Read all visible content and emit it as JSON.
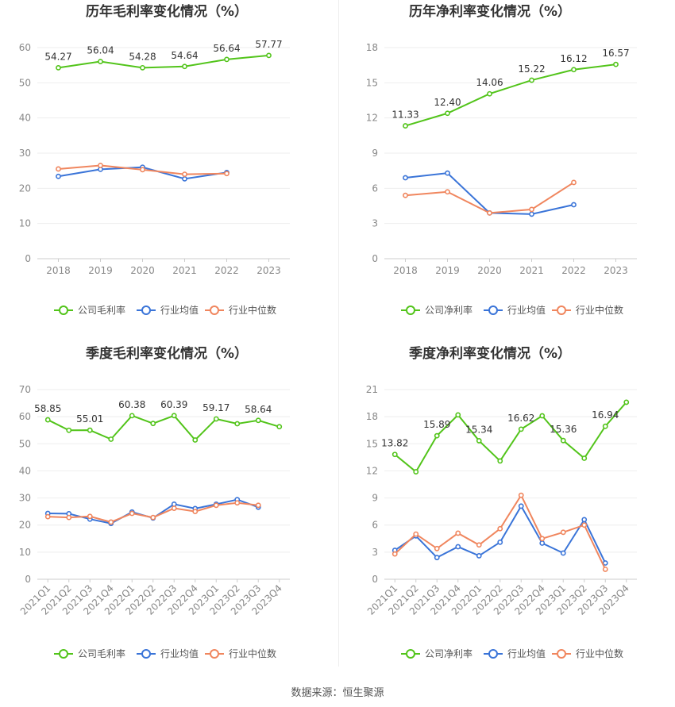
{
  "colors": {
    "company": "#52c41a",
    "average": "#3a74d8",
    "median": "#f0865e"
  },
  "source": "数据来源：恒生聚源",
  "chart_data": [
    {
      "type": "line",
      "title": "历年毛利率变化情况（%）",
      "categories": [
        "2018",
        "2019",
        "2020",
        "2021",
        "2022",
        "2023"
      ],
      "yticks": [
        "0",
        "10",
        "20",
        "30",
        "40",
        "50",
        "60"
      ],
      "ylim": [
        0,
        60
      ],
      "grid": true,
      "legend_position": "bottom",
      "series": [
        {
          "name": "公司毛利率",
          "values": [
            54.27,
            56.04,
            54.28,
            54.64,
            56.64,
            57.77
          ],
          "labels": [
            "54.27",
            "56.04",
            "54.28",
            "54.64",
            "56.64",
            "57.77"
          ]
        },
        {
          "name": "行业均值",
          "values": [
            23.4,
            25.4,
            26.0,
            22.7,
            24.5,
            null
          ]
        },
        {
          "name": "行业中位数",
          "values": [
            25.5,
            26.5,
            25.3,
            24.0,
            24.2,
            null
          ]
        }
      ]
    },
    {
      "type": "line",
      "title": "历年净利率变化情况（%）",
      "categories": [
        "2018",
        "2019",
        "2020",
        "2021",
        "2022",
        "2023"
      ],
      "yticks": [
        "0",
        "3",
        "6",
        "9",
        "12",
        "15",
        "18"
      ],
      "ylim": [
        0,
        18
      ],
      "grid": true,
      "legend_position": "bottom",
      "series": [
        {
          "name": "公司净利率",
          "values": [
            11.33,
            12.4,
            14.06,
            15.22,
            16.12,
            16.57
          ],
          "labels": [
            "11.33",
            "12.40",
            "14.06",
            "15.22",
            "16.12",
            "16.57"
          ]
        },
        {
          "name": "行业均值",
          "values": [
            6.9,
            7.3,
            3.9,
            3.8,
            4.6,
            null
          ]
        },
        {
          "name": "行业中位数",
          "values": [
            5.4,
            5.7,
            3.9,
            4.2,
            6.5,
            null
          ]
        }
      ]
    },
    {
      "type": "line",
      "title": "季度毛利率变化情况（%）",
      "categories": [
        "2021Q1",
        "2021Q2",
        "2021Q3",
        "2021Q4",
        "2022Q1",
        "2022Q2",
        "2022Q3",
        "2022Q4",
        "2023Q1",
        "2023Q2",
        "2023Q3",
        "2023Q4"
      ],
      "yticks": [
        "0",
        "10",
        "20",
        "30",
        "40",
        "50",
        "60",
        "70"
      ],
      "ylim": [
        0,
        70
      ],
      "grid": true,
      "legend_position": "bottom",
      "series": [
        {
          "name": "公司毛利率",
          "values": [
            58.85,
            55.0,
            55.01,
            51.7,
            60.38,
            57.5,
            60.39,
            51.4,
            59.17,
            57.4,
            58.64,
            56.3
          ],
          "labels": [
            "58.85",
            "",
            "55.01",
            "",
            "60.38",
            "",
            "60.39",
            "",
            "59.17",
            "",
            "58.64",
            ""
          ]
        },
        {
          "name": "行业均值",
          "values": [
            24.3,
            24.2,
            22.2,
            20.6,
            24.8,
            22.6,
            27.7,
            26.1,
            27.7,
            29.4,
            26.6,
            null
          ]
        },
        {
          "name": "行业中位数",
          "values": [
            23.1,
            22.8,
            23.2,
            21.1,
            24.3,
            22.8,
            26.2,
            25.0,
            27.3,
            28.2,
            27.3,
            null
          ]
        }
      ]
    },
    {
      "type": "line",
      "title": "季度净利率变化情况（%）",
      "categories": [
        "2021Q1",
        "2021Q2",
        "2021Q3",
        "2021Q4",
        "2022Q1",
        "2022Q2",
        "2022Q3",
        "2022Q4",
        "2023Q1",
        "2023Q2",
        "2023Q3",
        "2023Q4"
      ],
      "yticks": [
        "0",
        "3",
        "6",
        "9",
        "12",
        "15",
        "18",
        "21"
      ],
      "ylim": [
        0,
        21
      ],
      "grid": true,
      "legend_position": "bottom",
      "series": [
        {
          "name": "公司净利率",
          "values": [
            13.82,
            11.9,
            15.89,
            18.2,
            15.34,
            13.1,
            16.62,
            18.1,
            15.36,
            13.4,
            16.94,
            19.6
          ],
          "labels": [
            "13.82",
            "",
            "15.89",
            "",
            "15.34",
            "",
            "16.62",
            "",
            "15.36",
            "",
            "16.94",
            ""
          ]
        },
        {
          "name": "行业均值",
          "values": [
            3.2,
            4.8,
            2.4,
            3.6,
            2.6,
            4.1,
            8.1,
            4.0,
            2.9,
            6.6,
            1.8,
            null
          ]
        },
        {
          "name": "行业中位数",
          "values": [
            2.8,
            5.0,
            3.4,
            5.1,
            3.8,
            5.6,
            9.3,
            4.5,
            5.2,
            6.0,
            1.1,
            null
          ]
        }
      ]
    }
  ]
}
